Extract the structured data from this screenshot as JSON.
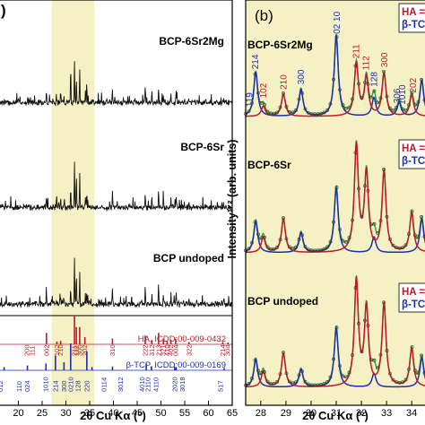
{
  "chart_data": [
    {
      "panel": "a",
      "panel_label": ")",
      "type": "line",
      "xlabel": "2θ Cu Kα (°)",
      "ylabel": "",
      "xlim": [
        15,
        65
      ],
      "x_ticks": [
        15,
        20,
        25,
        30,
        35,
        40,
        45,
        50,
        55,
        60,
        65
      ],
      "highlight_range": [
        27,
        36
      ],
      "highlight_color": "#f6f1c4",
      "series": [
        {
          "name": "BCP-6Sr2Mg",
          "color": "#111111",
          "peaks": [
            [
              25.9,
              14
            ],
            [
              28.0,
              11
            ],
            [
              28.9,
              12
            ],
            [
              29.6,
              9
            ],
            [
              31.0,
              33
            ],
            [
              31.8,
              48
            ],
            [
              32.2,
              30
            ],
            [
              32.9,
              36
            ],
            [
              34.1,
              12
            ],
            [
              34.4,
              17
            ],
            [
              39.8,
              16
            ],
            [
              46.7,
              19
            ],
            [
              48.1,
              12
            ],
            [
              49.5,
              16
            ],
            [
              50.5,
              10
            ],
            [
              52.1,
              9
            ],
            [
              53.2,
              12
            ],
            [
              55.9,
              5
            ],
            [
              63.2,
              5
            ]
          ]
        },
        {
          "name": "BCP-6Sr",
          "color": "#111111",
          "peaks": [
            [
              25.9,
              12
            ],
            [
              28.0,
              8
            ],
            [
              28.9,
              10
            ],
            [
              29.6,
              6
            ],
            [
              31.0,
              22
            ],
            [
              31.8,
              52
            ],
            [
              32.2,
              36
            ],
            [
              32.9,
              34
            ],
            [
              34.1,
              11
            ],
            [
              34.4,
              14
            ],
            [
              39.8,
              18
            ],
            [
              46.7,
              19
            ],
            [
              48.1,
              10
            ],
            [
              49.5,
              20
            ],
            [
              50.5,
              12
            ],
            [
              52.1,
              10
            ],
            [
              53.2,
              15
            ],
            [
              55.9,
              5
            ],
            [
              63.2,
              5
            ]
          ]
        },
        {
          "name": "BCP undoped",
          "color": "#111111",
          "peaks": [
            [
              25.9,
              12
            ],
            [
              28.0,
              7
            ],
            [
              28.9,
              9
            ],
            [
              29.6,
              6
            ],
            [
              31.0,
              20
            ],
            [
              31.8,
              55
            ],
            [
              32.2,
              38
            ],
            [
              32.9,
              36
            ],
            [
              34.1,
              12
            ],
            [
              34.4,
              14
            ],
            [
              39.8,
              20
            ],
            [
              46.7,
              20
            ],
            [
              48.1,
              9
            ],
            [
              49.5,
              22
            ],
            [
              50.5,
              12
            ],
            [
              52.1,
              11
            ],
            [
              53.2,
              16
            ],
            [
              55.9,
              5
            ],
            [
              63.2,
              5
            ]
          ]
        }
      ],
      "reference_patterns": [
        {
          "label": "HA, ICDD:00-009-0432",
          "color": "#c0192b",
          "sticks": [
            [
              25.9,
              40
            ],
            [
              28.1,
              10
            ],
            [
              28.9,
              12
            ],
            [
              31.8,
              100
            ],
            [
              32.2,
              60
            ],
            [
              32.9,
              60
            ],
            [
              34.0,
              25
            ],
            [
              39.8,
              20
            ],
            [
              46.7,
              30
            ],
            [
              48.1,
              15
            ],
            [
              49.5,
              40
            ],
            [
              50.5,
              20
            ],
            [
              51.3,
              12
            ],
            [
              52.1,
              15
            ],
            [
              53.1,
              20
            ],
            [
              55.9,
              8
            ],
            [
              63.0,
              8
            ],
            [
              64.1,
              6
            ]
          ],
          "hkl": [
            [
              21.8,
              "200"
            ],
            [
              22.9,
              "111"
            ],
            [
              25.9,
              "002"
            ],
            [
              28.1,
              "102"
            ],
            [
              28.9,
              "210"
            ],
            [
              31.8,
              "211"
            ],
            [
              32.2,
              "112"
            ],
            [
              32.9,
              "300"
            ],
            [
              34.0,
              "202"
            ],
            [
              39.8,
              "310"
            ],
            [
              46.7,
              "222"
            ],
            [
              48.1,
              "312"
            ],
            [
              49.5,
              "213"
            ],
            [
              50.5,
              "321"
            ],
            [
              51.3,
              "410"
            ],
            [
              52.1,
              "402"
            ],
            [
              53.1,
              "004"
            ],
            [
              55.9,
              "322"
            ],
            [
              63.0,
              "214"
            ],
            [
              64.1,
              "304"
            ]
          ]
        },
        {
          "label": "β-TCP, ICDD:00-009-0169",
          "color": "#1b2fb0",
          "sticks": [
            [
              17.0,
              12
            ],
            [
              21.9,
              18
            ],
            [
              25.8,
              25
            ],
            [
              27.8,
              55
            ],
            [
              29.6,
              30
            ],
            [
              31.0,
              100
            ],
            [
              34.4,
              70
            ],
            [
              35.5,
              12
            ],
            [
              39.8,
              14
            ],
            [
              46.9,
              25
            ],
            [
              48.0,
              15
            ],
            [
              52.9,
              14
            ],
            [
              53.2,
              10
            ],
            [
              63.3,
              8
            ]
          ],
          "hkl": [
            [
              16.2,
              "012"
            ],
            [
              20.2,
              "110"
            ],
            [
              21.9,
              "024"
            ],
            [
              25.8,
              "1010"
            ],
            [
              27.8,
              "214"
            ],
            [
              29.6,
              "300"
            ],
            [
              31.0,
              "0210"
            ],
            [
              32.5,
              "128"
            ],
            [
              34.4,
              "220"
            ],
            [
              38.0,
              "0114"
            ],
            [
              41.5,
              "3012"
            ],
            [
              46.0,
              "4010"
            ],
            [
              47.3,
              "2110"
            ],
            [
              49.0,
              "4110"
            ],
            [
              52.9,
              "2020"
            ],
            [
              54.5,
              "3018"
            ],
            [
              62.5,
              "517"
            ]
          ]
        }
      ]
    },
    {
      "panel": "b",
      "panel_label": "(b)",
      "type": "line",
      "xlabel": "2θ Cu Kα (°)",
      "ylabel": "Intensity¹ᐟ² (arb. units)",
      "xlim": [
        27.4,
        34.6
      ],
      "x_ticks": [
        28,
        29,
        30,
        31,
        32,
        33,
        34
      ],
      "background_color": "#f6f1c4",
      "legend_entries": [
        "HA",
        "β-TCP"
      ],
      "legend_labels": [
        "HA =",
        "β-TC",
        "HA =",
        "β-TC",
        "HA =",
        "β-TC"
      ],
      "samples": [
        {
          "name": "BCP-6Sr2Mg",
          "ha_peaks": [
            [
              28.1,
              0.12
            ],
            [
              28.9,
              0.26
            ],
            [
              31.8,
              0.62
            ],
            [
              32.2,
              0.45
            ],
            [
              32.9,
              0.5
            ],
            [
              34.0,
              0.25
            ]
          ],
          "tcp_peaks": [
            [
              27.8,
              0.52
            ],
            [
              29.6,
              0.32
            ],
            [
              31.0,
              0.95
            ],
            [
              32.5,
              0.22
            ],
            [
              33.5,
              0.16
            ],
            [
              34.4,
              0.42
            ]
          ],
          "hkl_labels": [
            {
              "x": 27.55,
              "text": "119",
              "color": "#1b2fb0"
            },
            {
              "x": 27.78,
              "text": "214",
              "color": "#1b2fb0"
            },
            {
              "x": 28.1,
              "text": "102",
              "color": "#c0192b"
            },
            {
              "x": 28.9,
              "text": "210",
              "color": "#c0192b"
            },
            {
              "x": 29.6,
              "text": "300",
              "color": "#1b2fb0"
            },
            {
              "x": 31.02,
              "text": "02 10",
              "color": "#1b2fb0"
            },
            {
              "x": 31.78,
              "text": "211",
              "color": "#c0192b"
            },
            {
              "x": 32.18,
              "text": "112",
              "color": "#c0192b"
            },
            {
              "x": 32.5,
              "text": "128",
              "color": "#1b2fb0"
            },
            {
              "x": 32.9,
              "text": "300",
              "color": "#c0192b"
            },
            {
              "x": 33.4,
              "text": "306",
              "color": "#1b2fb0"
            },
            {
              "x": 33.62,
              "text": "1010",
              "color": "#1b2fb0"
            },
            {
              "x": 34.05,
              "text": "202",
              "color": "#c0192b"
            }
          ]
        },
        {
          "name": "BCP-6Sr",
          "ha_peaks": [
            [
              28.1,
              0.14
            ],
            [
              28.9,
              0.3
            ],
            [
              31.8,
              0.95
            ],
            [
              32.2,
              0.7
            ],
            [
              32.9,
              0.72
            ],
            [
              34.0,
              0.35
            ]
          ],
          "tcp_peaks": [
            [
              27.8,
              0.28
            ],
            [
              29.6,
              0.18
            ],
            [
              31.0,
              0.58
            ],
            [
              32.5,
              0.14
            ],
            [
              34.4,
              0.3
            ]
          ],
          "hkl_labels": []
        },
        {
          "name": "BCP undoped",
          "ha_peaks": [
            [
              28.1,
              0.15
            ],
            [
              28.9,
              0.32
            ],
            [
              31.8,
              1.0
            ],
            [
              32.2,
              0.74
            ],
            [
              32.9,
              0.78
            ],
            [
              34.0,
              0.36
            ]
          ],
          "tcp_peaks": [
            [
              27.8,
              0.26
            ],
            [
              29.6,
              0.17
            ],
            [
              31.0,
              0.56
            ],
            [
              32.5,
              0.13
            ],
            [
              34.4,
              0.28
            ]
          ],
          "hkl_labels": []
        }
      ]
    }
  ]
}
